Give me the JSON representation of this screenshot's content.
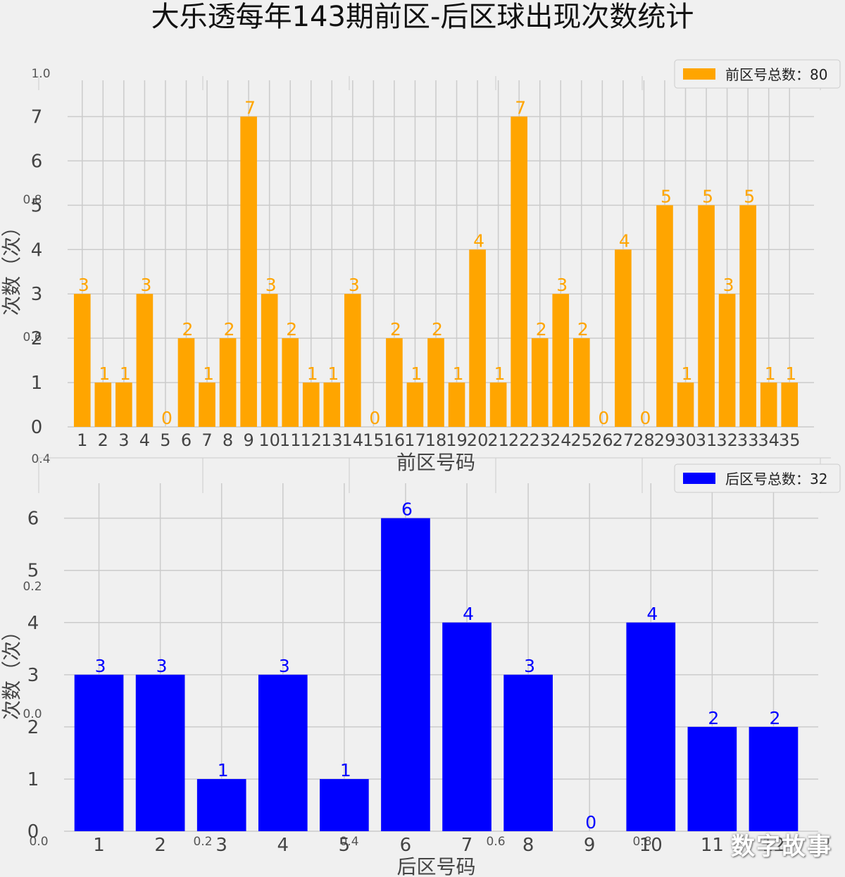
{
  "title": "大乐透每年143期前区-后区球出现次数统计",
  "watermark": "数字故事",
  "colors": {
    "front": "#FFA500",
    "back": "#0000FF",
    "grid": "#cbcbcb",
    "background": "#f0f0f0"
  },
  "chart_data": [
    {
      "type": "bar",
      "categories": [
        "1",
        "2",
        "3",
        "4",
        "5",
        "6",
        "7",
        "8",
        "9",
        "10",
        "11",
        "12",
        "13",
        "14",
        "15",
        "16",
        "17",
        "18",
        "19",
        "20",
        "21",
        "22",
        "23",
        "24",
        "25",
        "26",
        "27",
        "28",
        "29",
        "30",
        "31",
        "32",
        "33",
        "34",
        "35"
      ],
      "values": [
        3,
        1,
        1,
        3,
        0,
        2,
        1,
        2,
        7,
        3,
        2,
        1,
        1,
        3,
        0,
        2,
        1,
        2,
        1,
        4,
        1,
        7,
        2,
        3,
        2,
        0,
        4,
        0,
        5,
        1,
        5,
        3,
        5,
        1,
        1
      ],
      "xlabel": "前区号码",
      "ylabel": "次数（次）",
      "legend": "前区号总数：80",
      "legend_position": "top-right",
      "ylim": [
        0,
        7.5
      ],
      "yticks": [
        0,
        1,
        2,
        3,
        4,
        5,
        6,
        7
      ],
      "grid": true,
      "color": "#FFA500"
    },
    {
      "type": "bar",
      "categories": [
        "1",
        "2",
        "3",
        "4",
        "5",
        "6",
        "7",
        "8",
        "9",
        "10",
        "11",
        "12"
      ],
      "values": [
        3,
        3,
        1,
        3,
        1,
        6,
        4,
        3,
        0,
        4,
        2,
        2
      ],
      "xlabel": "后区号码",
      "ylabel": "次数（次）",
      "legend": "后区号总数：32",
      "legend_position": "top-right",
      "ylim": [
        0,
        6.4
      ],
      "yticks": [
        0,
        1,
        2,
        3,
        4,
        5,
        6
      ],
      "grid": true,
      "color": "#0000FF"
    }
  ],
  "ghost_axes": {
    "x_ticks": [
      "0.0",
      "0.2",
      "0.4",
      "0.6",
      "0.8",
      "1.0"
    ],
    "y_ticks": [
      "1.0",
      "0.8",
      "0.6",
      "0.4",
      "0.2",
      "0.0"
    ]
  }
}
